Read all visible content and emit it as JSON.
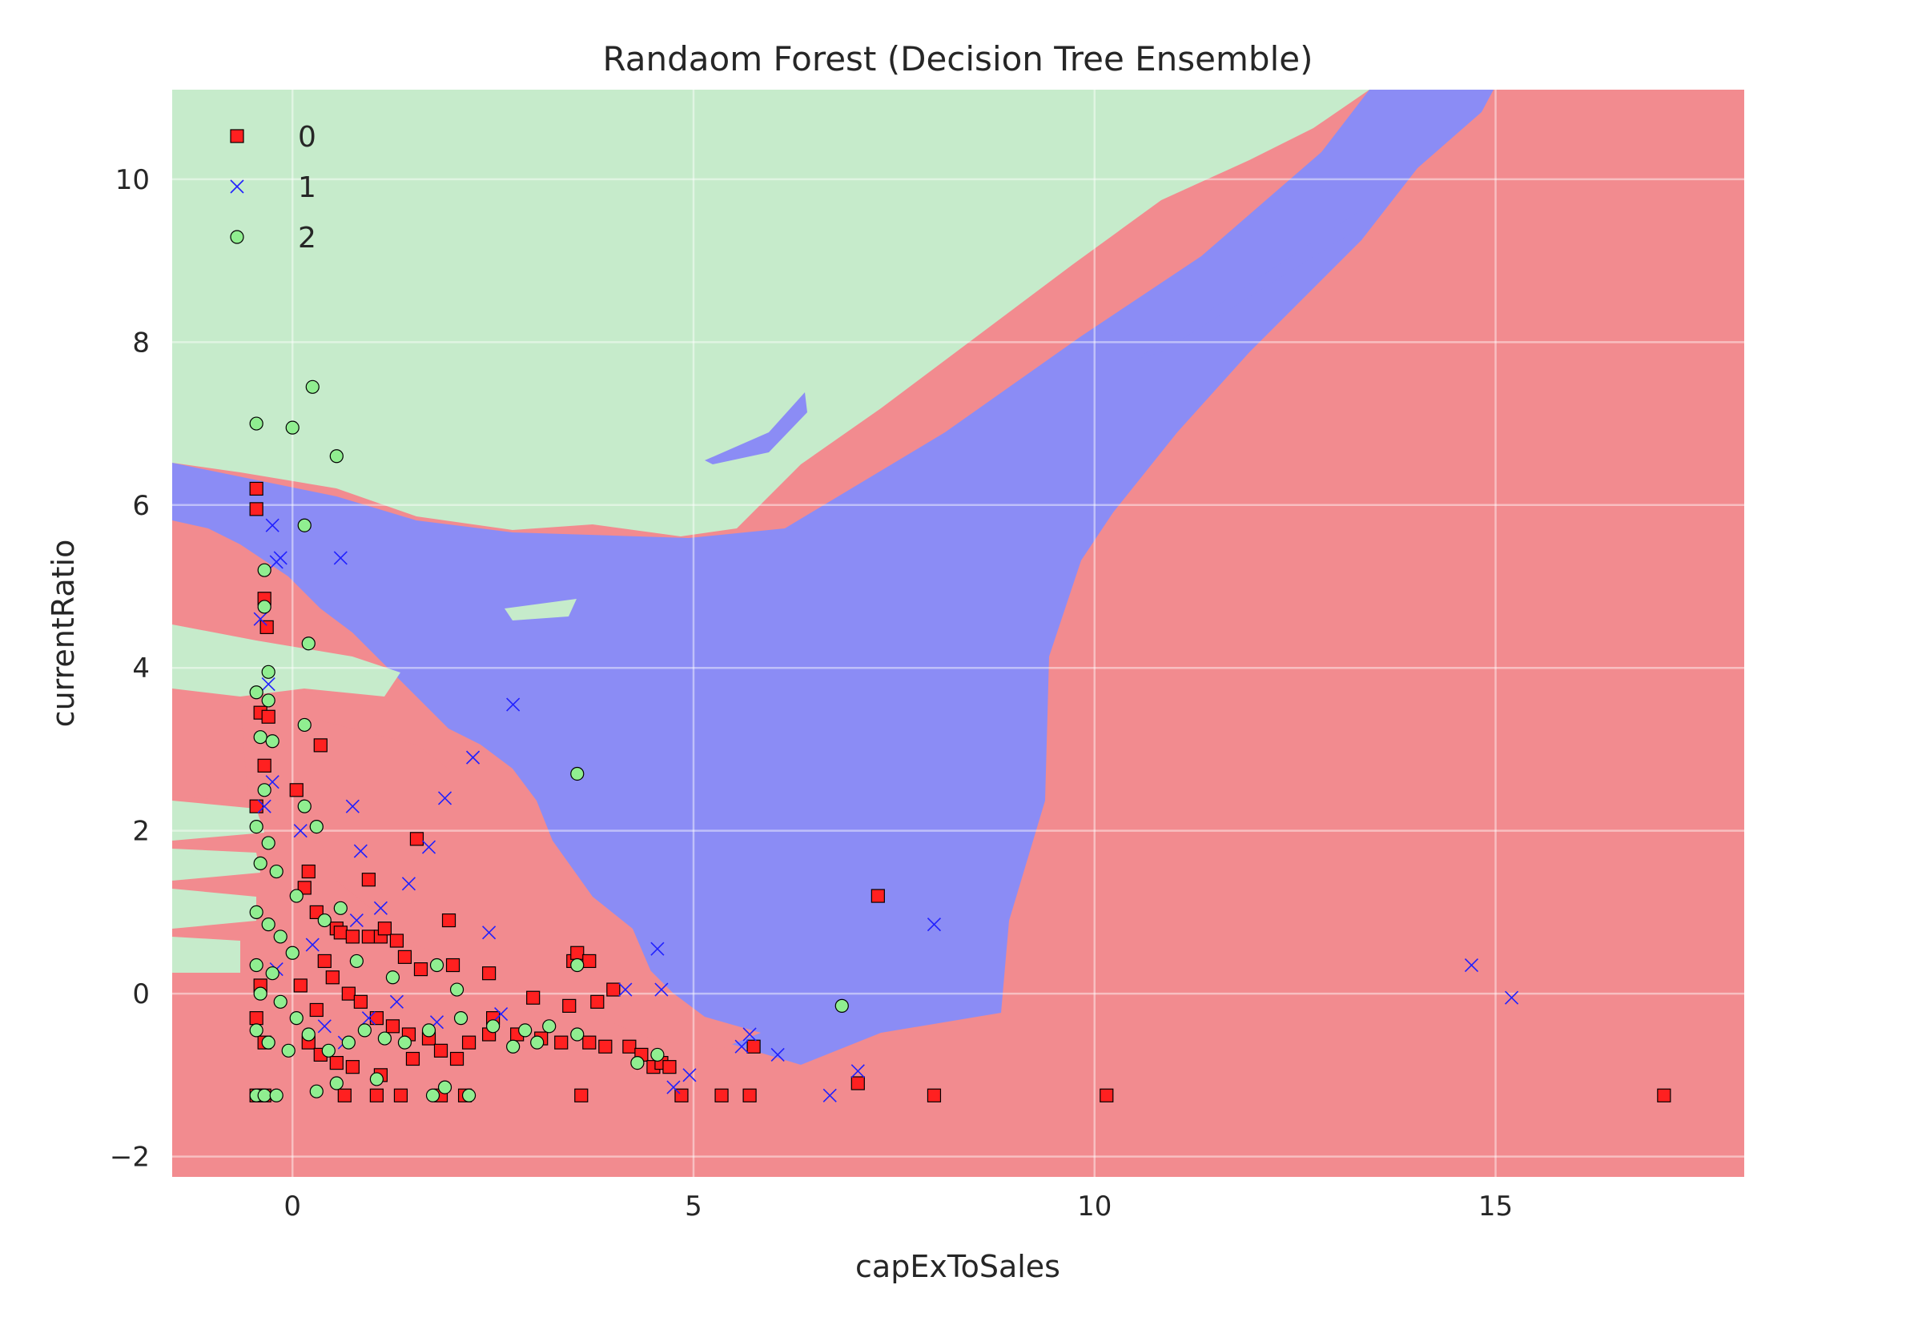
{
  "chart_data": {
    "type": "scatter",
    "title": "Randaom Forest (Decision Tree Ensemble)",
    "xlabel": "capExToSales",
    "ylabel": "currentRatio",
    "xlim": [
      -1.5,
      18.1
    ],
    "ylim": [
      -2.25,
      11.1
    ],
    "x_ticks": [
      0,
      5,
      10,
      15
    ],
    "y_ticks": [
      -2,
      0,
      2,
      4,
      6,
      8,
      10
    ],
    "x_tick_labels": [
      "0",
      "5",
      "10",
      "15"
    ],
    "y_tick_labels": [
      "−2",
      "0",
      "2",
      "4",
      "6",
      "8",
      "10"
    ],
    "grid": true,
    "legend_position": "top-left",
    "background": "decision regions for classes 0 (red), 1 (blue), 2 (green)",
    "region_colors": {
      "0": "#f28b8f",
      "1": "#8b8cf5",
      "2": "#c6ebcb"
    },
    "series": [
      {
        "name": "0",
        "marker": "square",
        "color": "#ff2020",
        "points": [
          [
            -0.45,
            6.2
          ],
          [
            -0.45,
            5.95
          ],
          [
            -0.35,
            4.85
          ],
          [
            -0.32,
            4.5
          ],
          [
            -0.4,
            3.45
          ],
          [
            -0.3,
            3.4
          ],
          [
            -0.35,
            2.8
          ],
          [
            0.35,
            3.05
          ],
          [
            0.05,
            2.5
          ],
          [
            -0.45,
            2.3
          ],
          [
            1.55,
            1.9
          ],
          [
            0.2,
            1.5
          ],
          [
            0.15,
            1.3
          ],
          [
            0.95,
            1.4
          ],
          [
            0.3,
            1.0
          ],
          [
            0.55,
            0.8
          ],
          [
            0.6,
            0.75
          ],
          [
            0.75,
            0.7
          ],
          [
            0.95,
            0.7
          ],
          [
            1.1,
            0.7
          ],
          [
            1.15,
            0.8
          ],
          [
            1.3,
            0.65
          ],
          [
            1.4,
            0.45
          ],
          [
            1.6,
            0.3
          ],
          [
            2.0,
            0.35
          ],
          [
            2.45,
            0.25
          ],
          [
            1.95,
            0.9
          ],
          [
            3.5,
            0.4
          ],
          [
            3.55,
            0.5
          ],
          [
            3.7,
            0.4
          ],
          [
            4.0,
            0.05
          ],
          [
            3.8,
            -0.1
          ],
          [
            3.45,
            -0.15
          ],
          [
            3.0,
            -0.05
          ],
          [
            2.5,
            -0.3
          ],
          [
            2.8,
            -0.5
          ],
          [
            3.1,
            -0.55
          ],
          [
            3.35,
            -0.6
          ],
          [
            3.7,
            -0.6
          ],
          [
            3.9,
            -0.65
          ],
          [
            4.2,
            -0.65
          ],
          [
            4.35,
            -0.75
          ],
          [
            4.5,
            -0.9
          ],
          [
            4.6,
            -0.85
          ],
          [
            4.7,
            -0.9
          ],
          [
            5.75,
            -0.65
          ],
          [
            7.3,
            1.2
          ],
          [
            0.5,
            0.2
          ],
          [
            0.7,
            0.0
          ],
          [
            0.85,
            -0.1
          ],
          [
            1.05,
            -0.3
          ],
          [
            1.25,
            -0.4
          ],
          [
            1.45,
            -0.5
          ],
          [
            1.7,
            -0.55
          ],
          [
            1.85,
            -0.7
          ],
          [
            2.05,
            -0.8
          ],
          [
            2.2,
            -0.6
          ],
          [
            2.45,
            -0.5
          ],
          [
            0.2,
            -0.6
          ],
          [
            0.35,
            -0.75
          ],
          [
            0.55,
            -0.85
          ],
          [
            0.75,
            -0.9
          ],
          [
            1.1,
            -1.0
          ],
          [
            1.5,
            -0.8
          ],
          [
            -0.45,
            -0.3
          ],
          [
            -0.4,
            0.1
          ],
          [
            -0.35,
            -0.6
          ],
          [
            0.1,
            0.1
          ],
          [
            0.3,
            -0.2
          ],
          [
            0.4,
            0.4
          ],
          [
            -0.45,
            -1.25
          ],
          [
            -0.35,
            -1.25
          ],
          [
            0.65,
            -1.25
          ],
          [
            1.05,
            -1.25
          ],
          [
            1.35,
            -1.25
          ],
          [
            1.85,
            -1.25
          ],
          [
            2.15,
            -1.25
          ],
          [
            3.6,
            -1.25
          ],
          [
            4.85,
            -1.25
          ],
          [
            5.35,
            -1.25
          ],
          [
            5.7,
            -1.25
          ],
          [
            7.05,
            -1.1
          ],
          [
            8.0,
            -1.25
          ],
          [
            10.15,
            -1.25
          ],
          [
            17.1,
            -1.25
          ]
        ]
      },
      {
        "name": "1",
        "marker": "x",
        "color": "#2020ff",
        "points": [
          [
            -0.25,
            5.75
          ],
          [
            -0.2,
            5.3
          ],
          [
            -0.15,
            5.35
          ],
          [
            0.6,
            5.35
          ],
          [
            -0.4,
            4.6
          ],
          [
            -0.3,
            3.8
          ],
          [
            2.75,
            3.55
          ],
          [
            2.25,
            2.9
          ],
          [
            1.9,
            2.4
          ],
          [
            0.75,
            2.3
          ],
          [
            1.7,
            1.8
          ],
          [
            0.85,
            1.75
          ],
          [
            1.45,
            1.35
          ],
          [
            2.45,
            0.75
          ],
          [
            4.55,
            0.55
          ],
          [
            1.1,
            1.05
          ],
          [
            0.8,
            0.9
          ],
          [
            -0.25,
            2.6
          ],
          [
            -0.35,
            2.3
          ],
          [
            0.1,
            2.0
          ],
          [
            4.15,
            0.05
          ],
          [
            4.6,
            0.05
          ],
          [
            6.05,
            -0.75
          ],
          [
            5.6,
            -0.65
          ],
          [
            5.7,
            -0.5
          ],
          [
            6.7,
            -1.25
          ],
          [
            7.05,
            -0.95
          ],
          [
            8.0,
            0.85
          ],
          [
            14.7,
            0.35
          ],
          [
            15.2,
            -0.05
          ],
          [
            4.95,
            -1.0
          ],
          [
            4.75,
            -1.15
          ],
          [
            2.6,
            -0.25
          ],
          [
            0.4,
            -0.4
          ],
          [
            0.65,
            -0.6
          ],
          [
            0.95,
            -0.3
          ],
          [
            -0.2,
            0.3
          ],
          [
            0.25,
            0.6
          ],
          [
            1.3,
            -0.1
          ],
          [
            1.8,
            -0.35
          ]
        ]
      },
      {
        "name": "2",
        "marker": "circle",
        "color": "#90ee90",
        "points": [
          [
            0.25,
            7.45
          ],
          [
            -0.45,
            7.0
          ],
          [
            0.0,
            6.95
          ],
          [
            0.55,
            6.6
          ],
          [
            0.15,
            5.75
          ],
          [
            -0.35,
            5.2
          ],
          [
            0.2,
            4.3
          ],
          [
            -0.35,
            4.75
          ],
          [
            -0.3,
            3.95
          ],
          [
            -0.45,
            3.7
          ],
          [
            -0.3,
            3.6
          ],
          [
            0.15,
            3.3
          ],
          [
            -0.4,
            3.15
          ],
          [
            -0.25,
            3.1
          ],
          [
            -0.35,
            2.5
          ],
          [
            0.15,
            2.3
          ],
          [
            0.3,
            2.05
          ],
          [
            -0.45,
            2.05
          ],
          [
            -0.3,
            1.85
          ],
          [
            -0.4,
            1.6
          ],
          [
            -0.2,
            1.5
          ],
          [
            0.05,
            1.2
          ],
          [
            -0.45,
            1.0
          ],
          [
            -0.3,
            0.85
          ],
          [
            -0.15,
            0.7
          ],
          [
            0.0,
            0.5
          ],
          [
            -0.45,
            0.35
          ],
          [
            -0.25,
            0.25
          ],
          [
            -0.4,
            0.0
          ],
          [
            -0.15,
            -0.1
          ],
          [
            0.05,
            -0.3
          ],
          [
            -0.45,
            -0.45
          ],
          [
            -0.3,
            -0.6
          ],
          [
            -0.05,
            -0.7
          ],
          [
            0.2,
            -0.5
          ],
          [
            0.45,
            -0.7
          ],
          [
            0.7,
            -0.6
          ],
          [
            0.9,
            -0.45
          ],
          [
            1.15,
            -0.55
          ],
          [
            1.4,
            -0.6
          ],
          [
            1.7,
            -0.45
          ],
          [
            2.1,
            -0.3
          ],
          [
            2.5,
            -0.4
          ],
          [
            2.9,
            -0.45
          ],
          [
            3.2,
            -0.4
          ],
          [
            3.55,
            -0.5
          ],
          [
            3.55,
            2.7
          ],
          [
            3.55,
            0.35
          ],
          [
            1.8,
            0.35
          ],
          [
            2.05,
            0.05
          ],
          [
            1.25,
            0.2
          ],
          [
            0.8,
            0.4
          ],
          [
            0.4,
            0.9
          ],
          [
            0.6,
            1.05
          ],
          [
            -0.45,
            -1.25
          ],
          [
            -0.35,
            -1.25
          ],
          [
            -0.2,
            -1.25
          ],
          [
            0.3,
            -1.2
          ],
          [
            0.55,
            -1.1
          ],
          [
            1.05,
            -1.05
          ],
          [
            1.75,
            -1.25
          ],
          [
            1.9,
            -1.15
          ],
          [
            2.2,
            -1.25
          ],
          [
            4.3,
            -0.85
          ],
          [
            4.55,
            -0.75
          ],
          [
            6.85,
            -0.15
          ],
          [
            2.75,
            -0.65
          ],
          [
            3.05,
            -0.6
          ]
        ]
      }
    ]
  }
}
